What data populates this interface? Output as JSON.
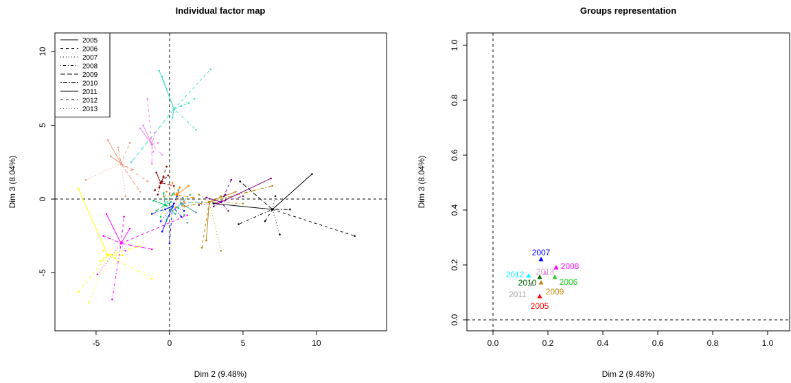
{
  "chart_data": [
    {
      "type": "star",
      "title": "Individual factor map",
      "xlabel": "Dim 2 (9.48%)",
      "ylabel": "Dim 3 (8.04%)",
      "xlim": [
        -7.8,
        14.77
      ],
      "ylim": [
        -8.93,
        11.26
      ],
      "xticks": [
        -5,
        0,
        5,
        10
      ],
      "yticks": [
        -5,
        0,
        5,
        10
      ],
      "legend": "topleft",
      "series": [
        {
          "name": "2005",
          "dash": "solid"
        },
        {
          "name": "2006",
          "dash": "dashed"
        },
        {
          "name": "2007",
          "dash": "dotted"
        },
        {
          "name": "2008",
          "dash": "dotdash"
        },
        {
          "name": "2009",
          "dash": "longdash"
        },
        {
          "name": "2010",
          "dash": "twodash"
        },
        {
          "name": "2011",
          "dash": "solid"
        },
        {
          "name": "2012",
          "dash": "dashed"
        },
        {
          "name": "2013",
          "dash": "dotted"
        }
      ],
      "individuals": [
        {
          "color": "#40e0d0",
          "x": 0.3,
          "y": 6.1,
          "partial_x": [
            -0.7,
            2.8,
            1.7,
            1.8,
            -2.6,
            -0.5,
            0.2,
            1.3,
            0.8
          ],
          "partial_y": [
            8.7,
            8.8,
            6.8,
            4.7,
            2.5,
            8.3,
            5.5,
            6.5,
            6.3
          ]
        },
        {
          "color": "#e9967a",
          "x": -3.3,
          "y": 2.4,
          "partial_x": [
            -4.2,
            -2.7,
            -5.7,
            -1.5,
            -2.0,
            -3.5,
            -4.0,
            -2.5,
            -3.0
          ],
          "partial_y": [
            4.0,
            3.8,
            1.3,
            1.2,
            0.5,
            3.5,
            2.9,
            2.0,
            0.2
          ]
        },
        {
          "color": "#ffff00",
          "x": -4.2,
          "y": -3.8,
          "partial_x": [
            -6.2,
            -6.2,
            -5.5,
            -1.2,
            -2.0,
            -4.7,
            -3.2,
            -4.5,
            -3.7
          ],
          "partial_y": [
            0.7,
            -6.3,
            -7.0,
            -5.4,
            -3.2,
            -4.2,
            -3.8,
            -3.5,
            -4.0
          ]
        },
        {
          "color": "#ff00ff",
          "x": -3.3,
          "y": -3.0,
          "partial_x": [
            -4.3,
            -3.1,
            -4.9,
            -3.9,
            -1.2,
            -4.5,
            -2.7,
            1.2,
            -3.0
          ],
          "partial_y": [
            -1.0,
            -1.2,
            -5.1,
            -6.8,
            -3.4,
            -2.5,
            -2.0,
            -1.1,
            -3.5
          ]
        },
        {
          "color": "#ee82ee",
          "x": -1.2,
          "y": 3.7,
          "partial_x": [
            -2.0,
            -1.5,
            -1.3,
            -0.5,
            -1.2,
            -1.0,
            -1.8,
            -0.8,
            -1.1
          ],
          "partial_y": [
            4.8,
            6.8,
            4.1,
            3.0,
            2.4,
            4.5,
            5.0,
            3.8,
            3.2
          ]
        },
        {
          "color": "#000000",
          "x": 7.0,
          "y": -0.7,
          "partial_x": [
            9.7,
            12.6,
            7.5,
            4.7,
            4.8,
            8.2,
            3.0,
            6.5,
            7.2
          ],
          "partial_y": [
            1.7,
            -2.5,
            -2.4,
            -1.7,
            1.2,
            -0.7,
            -0.3,
            -1.5,
            0.2
          ]
        },
        {
          "color": "#b8860b",
          "x": 2.7,
          "y": -0.2,
          "partial_x": [
            4.5,
            2.2,
            3.5,
            5.0,
            1.0,
            7.0,
            2.5,
            3.5,
            2.0
          ],
          "partial_y": [
            0.5,
            -3.3,
            -3.5,
            -0.3,
            -0.5,
            0.9,
            -2.8,
            0.2,
            0.3
          ]
        },
        {
          "color": "#800080",
          "x": 3.5,
          "y": -0.2,
          "partial_x": [
            6.9,
            4.2,
            2.0,
            5.0,
            3.0,
            4.0,
            2.5,
            3.8,
            3.2
          ],
          "partial_y": [
            1.4,
            1.3,
            -0.4,
            0.2,
            -0.5,
            -0.8,
            0.1,
            0.3,
            -0.3
          ]
        },
        {
          "color": "#0000ff",
          "x": 0.2,
          "y": -0.5,
          "partial_x": [
            -0.5,
            0.0,
            1.0,
            -1.2,
            0.5,
            0.8,
            -0.3,
            0.3,
            -0.6
          ],
          "partial_y": [
            -2.2,
            -3.0,
            -0.8,
            -1.0,
            0.2,
            -1.2,
            -0.7,
            -0.3,
            -1.5
          ]
        },
        {
          "color": "#8b0000",
          "x": -0.6,
          "y": 1.1,
          "partial_x": [
            -0.9,
            -0.2,
            -1.0,
            -0.4,
            0.3,
            -0.8,
            -0.5,
            -0.1,
            -0.7
          ],
          "partial_y": [
            1.8,
            2.2,
            0.6,
            1.5,
            0.9,
            0.3,
            1.2,
            1.6,
            0.8
          ]
        },
        {
          "color": "#ff8c00",
          "x": 0.5,
          "y": 0.3,
          "partial_x": [
            1.3,
            0.2,
            0.9,
            -0.2,
            1.6,
            0.4,
            0.7,
            -0.4,
            1.0
          ],
          "partial_y": [
            0.9,
            1.1,
            -0.4,
            0.5,
            0.1,
            -0.6,
            0.8,
            0.2,
            -0.2
          ]
        },
        {
          "color": "#00cd66",
          "x": -0.3,
          "y": -0.4,
          "partial_x": [
            -1.1,
            0.4,
            -0.6,
            0.2,
            -0.9,
            0.1,
            -0.4,
            0.6,
            -0.2
          ],
          "partial_y": [
            -0.1,
            -1.0,
            -1.2,
            0.3,
            -0.8,
            -0.2,
            0.4,
            -0.6,
            -1.4
          ]
        },
        {
          "color": "#5f9ea0",
          "x": 0.8,
          "y": -0.3,
          "partial_x": [
            1.8,
            0.3,
            1.2,
            0.6,
            2.2,
            1.4,
            0.2,
            1.0,
            0.9
          ],
          "partial_y": [
            -0.9,
            0.4,
            -1.6,
            0.6,
            -0.2,
            0.3,
            -0.8,
            -1.1,
            0.1
          ]
        }
      ]
    },
    {
      "type": "scatter",
      "title": "Groups representation",
      "xlabel": "Dim 2 (9.48%)",
      "ylabel": "Dim 3 (8.04%)",
      "xlim": [
        -0.095,
        1.08
      ],
      "ylim": [
        -0.04,
        1.045
      ],
      "xticks": [
        {
          "value": 0,
          "label": "0.0"
        },
        0.2,
        0.4,
        0.6,
        0.8,
        {
          "value": 1,
          "label": "1.0"
        }
      ],
      "yticks": [
        {
          "value": 0,
          "label": "0.0"
        },
        0.2,
        0.4,
        0.6,
        0.8,
        {
          "value": 1,
          "label": "1.0"
        }
      ],
      "names": [
        "2005",
        "2006",
        "2007",
        "2008",
        "2009",
        "2010",
        "2011",
        "2012",
        "2013"
      ],
      "colors": [
        "#ff0000",
        "#22cc22",
        "#0000ff",
        "#ff00ff",
        "#b8860b",
        "#006400",
        "#a9a9a9",
        "#00ffff",
        "#dda0dd"
      ],
      "x": [
        0.17,
        0.225,
        0.175,
        0.23,
        0.175,
        0.17,
        0.14,
        0.13,
        0.19
      ],
      "y": [
        0.085,
        0.155,
        0.22,
        0.19,
        0.135,
        0.155,
        0.13,
        0.16,
        0.17
      ]
    }
  ]
}
